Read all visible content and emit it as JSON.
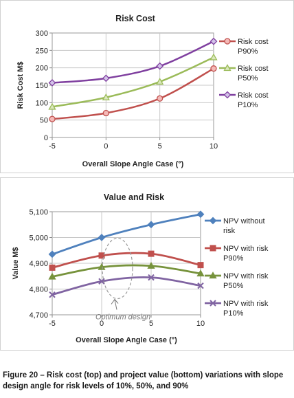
{
  "chart_data": [
    {
      "type": "line",
      "title": "Risk Cost",
      "xlabel": "Overall Slope Angle Case (°)",
      "ylabel": "Risk Cost  M$",
      "x": [
        -5,
        0,
        5,
        10
      ],
      "x_ticks": [
        "-5",
        "0",
        "5",
        "10"
      ],
      "y_ticks": [
        "0",
        "50",
        "100",
        "150",
        "200",
        "250",
        "300"
      ],
      "ylim": [
        0,
        300
      ],
      "grid": true,
      "legend_position": "right",
      "series": [
        {
          "name": "Risk cost P90%",
          "name_lines": [
            "Risk cost",
            "P90%"
          ],
          "values": [
            53,
            70,
            112,
            198
          ],
          "color": "#c0504d",
          "marker_fill": "#f4b9b7",
          "marker": "circle"
        },
        {
          "name": "Risk cost P50%",
          "name_lines": [
            "Risk cost",
            "P50%"
          ],
          "values": [
            88,
            115,
            160,
            230
          ],
          "color": "#9bbb59",
          "marker_fill": "#dbe8be",
          "marker": "triangle"
        },
        {
          "name": "Risk cost P10%",
          "name_lines": [
            "Risk cost",
            "P10%"
          ],
          "values": [
            157,
            170,
            205,
            276
          ],
          "color": "#7f3f9f",
          "marker_fill": "#d3c3e8",
          "marker": "diamond"
        }
      ]
    },
    {
      "type": "line",
      "title": "Value and Risk",
      "xlabel": "Overall Slope Angle Case (°)",
      "ylabel": "Value  M$",
      "x": [
        -5,
        0,
        5,
        10
      ],
      "x_ticks": [
        "-5",
        "0",
        "5",
        "10"
      ],
      "y_ticks": [
        "4,700",
        "4,800",
        "4,900",
        "5,000",
        "5,100"
      ],
      "ylim": [
        4700,
        5100
      ],
      "grid": true,
      "legend_position": "right",
      "annotation": "Optimum design",
      "series": [
        {
          "name": "NPV without risk",
          "name_lines": [
            "NPV without",
            "risk"
          ],
          "values": [
            4935,
            5000,
            5050,
            5090
          ],
          "color": "#4f81bd",
          "marker": "diamond"
        },
        {
          "name": "NPV with risk P90%",
          "name_lines": [
            "NPV with risk",
            "P90%"
          ],
          "values": [
            4883,
            4930,
            4937,
            4893
          ],
          "color": "#c0504d",
          "marker": "square"
        },
        {
          "name": "NPV with risk P50%",
          "name_lines": [
            "NPV with risk",
            "P50%"
          ],
          "values": [
            4848,
            4885,
            4890,
            4860
          ],
          "color": "#77933c",
          "marker": "triangle"
        },
        {
          "name": "NPV with risk P10%",
          "name_lines": [
            "NPV with risk",
            "P10%"
          ],
          "values": [
            4778,
            4830,
            4845,
            4813
          ],
          "color": "#8064a2",
          "marker": "x"
        }
      ]
    }
  ],
  "caption": "Figure 20 – Risk cost (top) and project value (bottom) variations with slope design angle for risk levels of 10%, 50%, and 90%"
}
